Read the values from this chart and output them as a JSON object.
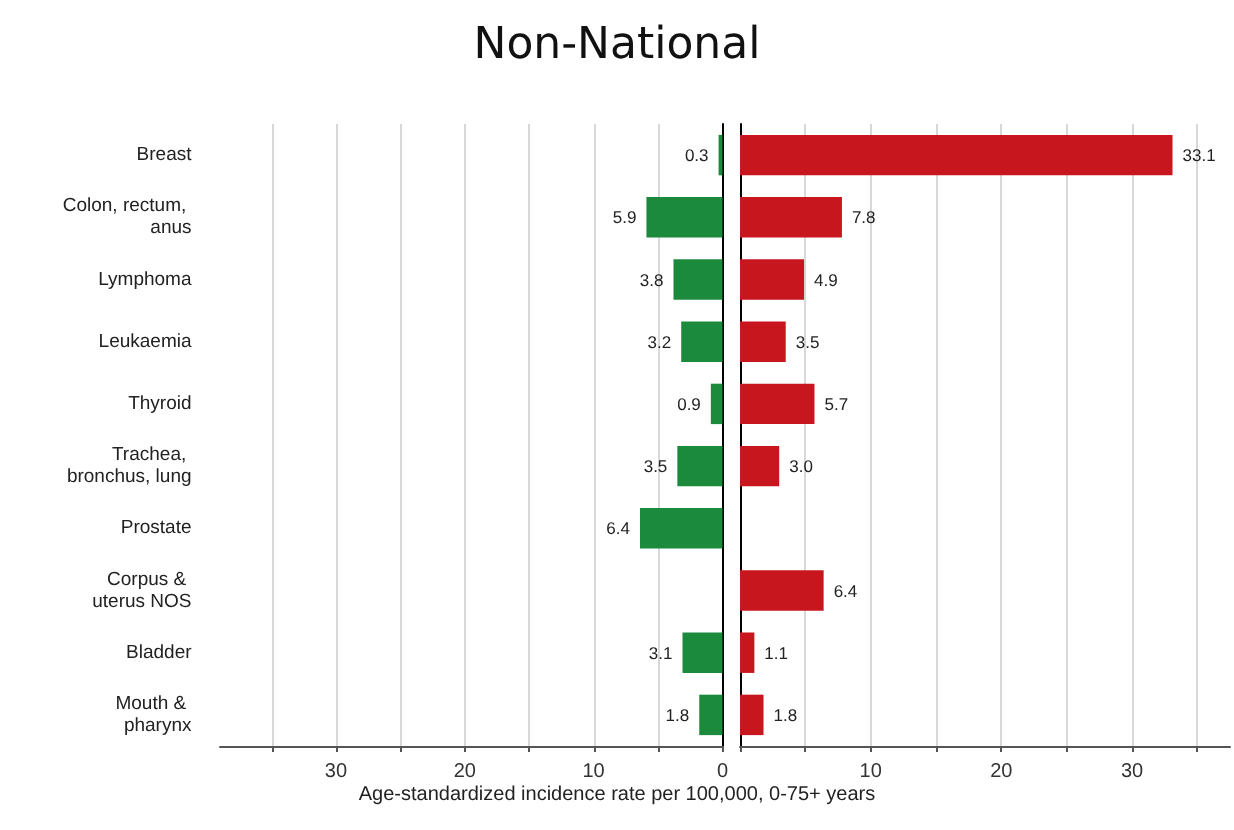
{
  "chart_data": [
    {
      "type": "bar",
      "orientation": "horizontal",
      "title": "Non-National",
      "xlabel": "Age-standardized incidence rate per 100,000, 0-75+ years",
      "categories": [
        "Breast",
        "Colon, rectum, anus",
        "Lymphoma",
        "Leukaemia",
        "Thyroid",
        "Trachea, bronchus, lung",
        "Prostate",
        "Corpus & uterus NOS",
        "Bladder",
        "Mouth & pharynx"
      ],
      "series": [
        {
          "color": "#1b8a3c",
          "values": [
            0.3,
            5.9,
            3.8,
            3.2,
            0.9,
            3.5,
            6.4,
            null,
            3.1,
            1.8
          ],
          "value_labels": [
            "0.3",
            "5.9",
            "3.8",
            "3.2",
            "0.9",
            "3.5",
            "6.4",
            null,
            "3.1",
            "1.8"
          ]
        }
      ],
      "xlim": [
        39,
        0
      ],
      "xticks": [
        {
          "value": 35,
          "label": null
        },
        30,
        {
          "value": 25,
          "label": null
        },
        20,
        {
          "value": 15,
          "label": null
        },
        10,
        {
          "value": 5,
          "label": null
        },
        0
      ],
      "grid": "x"
    },
    {
      "type": "bar",
      "orientation": "horizontal",
      "categories": [
        "Breast",
        "Colon, rectum, anus",
        "Lymphoma",
        "Leukaemia",
        "Thyroid",
        "Trachea, bronchus, lung",
        "Prostate",
        "Corpus & uterus NOS",
        "Bladder",
        "Mouth & pharynx"
      ],
      "series": [
        {
          "color": "#c8161f",
          "values": [
            33.1,
            7.8,
            4.9,
            3.5,
            5.7,
            3.0,
            null,
            6.4,
            1.1,
            1.8
          ],
          "value_labels": [
            "33.1",
            "7.8",
            "4.9",
            "3.5",
            "5.7",
            "3.0",
            null,
            "6.4",
            "1.1",
            "1.8"
          ]
        }
      ],
      "xlim": [
        0,
        37.5
      ],
      "xticks": [
        {
          "value": 0,
          "label": null
        },
        {
          "value": 5,
          "label": null
        },
        10,
        {
          "value": 15,
          "label": null
        },
        20,
        {
          "value": 25,
          "label": null
        },
        30,
        {
          "value": 35,
          "label": null
        }
      ],
      "tick_labels": "x",
      "grid": "x"
    }
  ]
}
